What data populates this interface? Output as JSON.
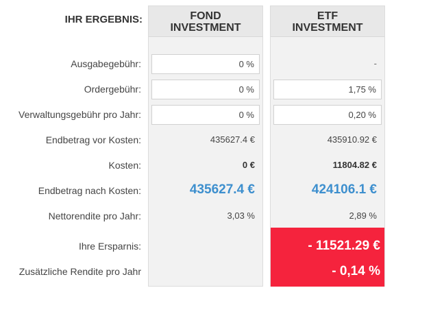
{
  "header": {
    "title": "IHR ERGEBNIS:",
    "fond_line1": "FOND",
    "fond_line2": "INVESTMENT",
    "etf_line1": "ETF",
    "etf_line2": "INVESTMENT"
  },
  "rows": {
    "ausgabegebuehr": {
      "label": "Ausgabegebühr:",
      "fond": "0 %",
      "etf": "-"
    },
    "ordergebuehr": {
      "label": "Ordergebühr:",
      "fond": "0 %",
      "etf": "1,75 %"
    },
    "verwaltungsgebuehr": {
      "label": "Verwaltungsgebühr pro Jahr:",
      "fond": "0 %",
      "etf": "0,20 %"
    },
    "endbetrag_vor": {
      "label": "Endbetrag vor Kosten:",
      "fond": "435627.4 €",
      "etf": "435910.92 €"
    },
    "kosten": {
      "label": "Kosten:",
      "fond": "0 €",
      "etf": "11804.82 €"
    },
    "endbetrag_nach": {
      "label": "Endbetrag nach Kosten:",
      "fond": "435627.4 €",
      "etf": "424106.1 €"
    },
    "nettorendite": {
      "label": "Nettorendite pro Jahr:",
      "fond": "3,03 %",
      "etf": "2,89 %"
    },
    "ersparnis": {
      "label": "Ihre Ersparnis:",
      "etf": "- 11521.29 €"
    },
    "zus_rendite": {
      "label": "Zusätzliche Rendite pro Jahr",
      "etf": "- 0,14 %"
    }
  },
  "colors": {
    "accent_blue": "#3d8fce",
    "highlight_red": "#f5233d",
    "column_bg": "#f2f2f2"
  }
}
